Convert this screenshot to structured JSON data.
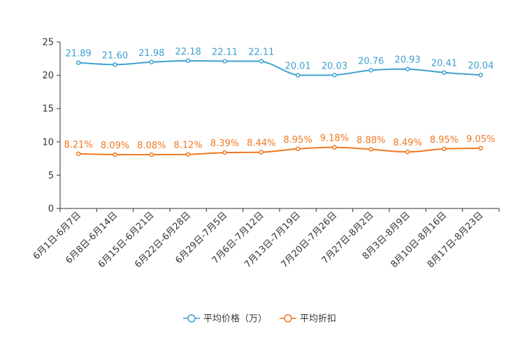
{
  "chart_data": {
    "type": "line",
    "title": "",
    "xlabel": "",
    "ylabel": "",
    "ylim": [
      0,
      25
    ],
    "yticks": [
      0,
      5,
      10,
      15,
      20,
      25
    ],
    "categories": [
      "6月1日-6月7日",
      "6月8日-6月14日",
      "6月15日-6月21日",
      "6月22日-6月28日",
      "6月29日-7月5日",
      "7月6日-7月12日",
      "7月13日-7月19日",
      "7月20日-7月26日",
      "7月27日-8月2日",
      "8月3日-8月9日",
      "8月10日-8月16日",
      "8月17日-8月23日"
    ],
    "series": [
      {
        "name": "平均价格（万）",
        "color": "#3fa0d0",
        "values": [
          21.89,
          21.6,
          21.98,
          22.18,
          22.11,
          22.11,
          20.01,
          20.03,
          20.76,
          20.93,
          20.41,
          20.04
        ],
        "labels": [
          "21.89",
          "21.60",
          "21.98",
          "22.18",
          "22.11",
          "22.11",
          "20.01",
          "20.03",
          "20.76",
          "20.93",
          "20.41",
          "20.04"
        ]
      },
      {
        "name": "平均折扣",
        "color": "#f07820",
        "values": [
          8.21,
          8.09,
          8.08,
          8.12,
          8.39,
          8.44,
          8.95,
          9.18,
          8.88,
          8.49,
          8.95,
          9.05
        ],
        "labels": [
          "8.21%",
          "8.09%",
          "8.08%",
          "8.12%",
          "8.39%",
          "8.44%",
          "8.95%",
          "9.18%",
          "8.88%",
          "8.49%",
          "8.95%",
          "9.05%"
        ]
      }
    ],
    "legend_position": "bottom-center",
    "grid": false
  }
}
